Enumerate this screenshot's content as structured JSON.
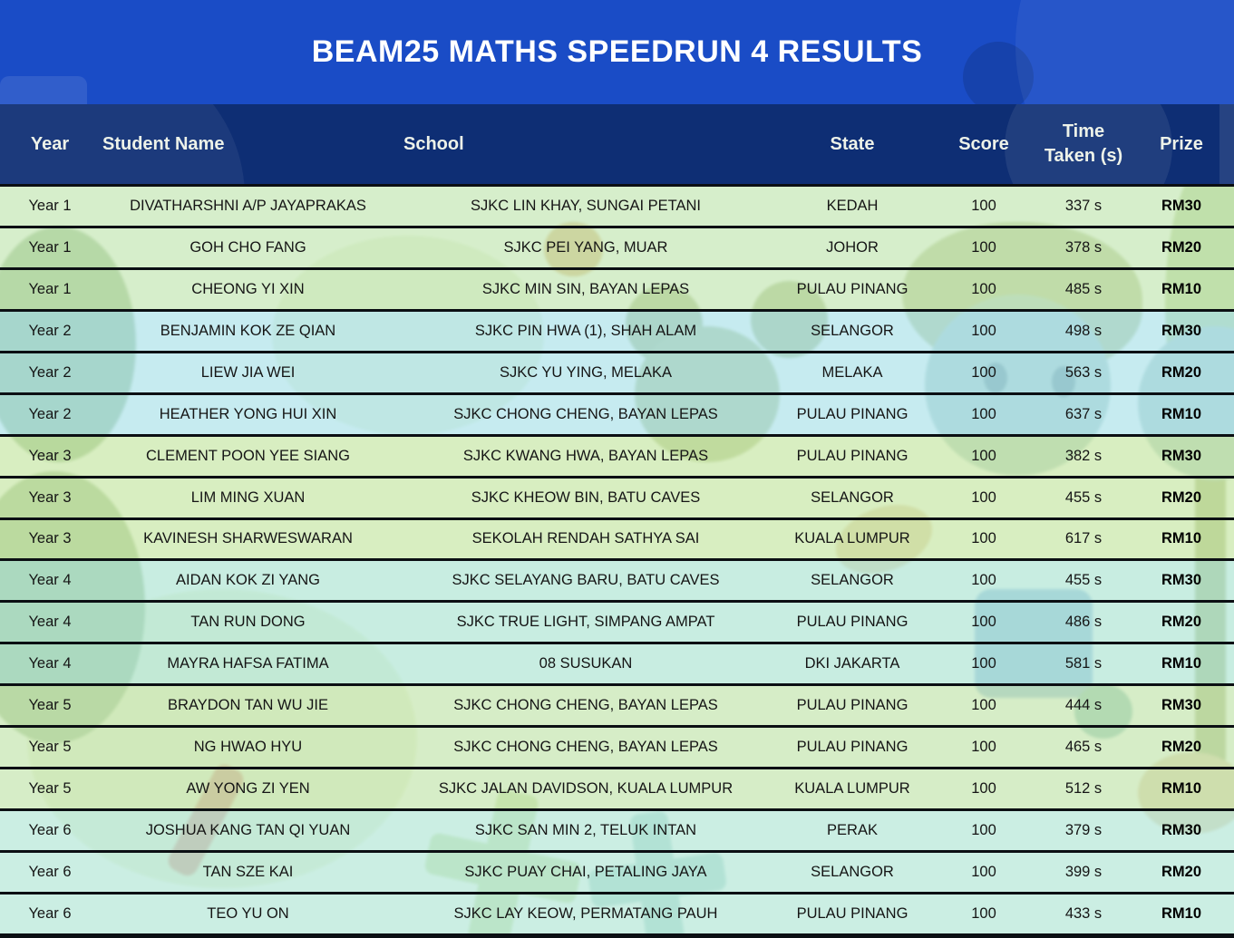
{
  "title": "BEAM25 MATHS SPEEDRUN 4 RESULTS",
  "chart_data": {
    "type": "table",
    "title": "BEAM25 MATHS SPEEDRUN 4 RESULTS",
    "columns": [
      "Year",
      "Student Name",
      "School",
      "State",
      "Score",
      "Time Taken (s)",
      "Prize"
    ],
    "rows": [
      [
        "Year 1",
        "DIVATHARSHNI A/P JAYAPRAKAS",
        "SJKC LIN KHAY, SUNGAI PETANI",
        "KEDAH",
        "100",
        "337 s",
        "RM30"
      ],
      [
        "Year 1",
        "GOH CHO FANG",
        "SJKC PEI YANG, MUAR",
        "JOHOR",
        "100",
        "378 s",
        "RM20"
      ],
      [
        "Year 1",
        "CHEONG YI XIN",
        "SJKC MIN SIN, BAYAN LEPAS",
        "PULAU PINANG",
        "100",
        "485 s",
        "RM10"
      ],
      [
        "Year 2",
        "BENJAMIN KOK ZE QIAN",
        "SJKC PIN HWA (1), SHAH ALAM",
        "SELANGOR",
        "100",
        "498 s",
        "RM30"
      ],
      [
        "Year 2",
        "LIEW JIA WEI",
        "SJKC YU YING, MELAKA",
        "MELAKA",
        "100",
        "563 s",
        "RM20"
      ],
      [
        "Year 2",
        "HEATHER YONG HUI XIN",
        "SJKC CHONG CHENG, BAYAN LEPAS",
        "PULAU PINANG",
        "100",
        "637 s",
        "RM10"
      ],
      [
        "Year 3",
        "CLEMENT POON YEE SIANG",
        "SJKC KWANG HWA, BAYAN LEPAS",
        "PULAU PINANG",
        "100",
        "382 s",
        "RM30"
      ],
      [
        "Year 3",
        "LIM MING XUAN",
        "SJKC KHEOW BIN, BATU CAVES",
        "SELANGOR",
        "100",
        "455 s",
        "RM20"
      ],
      [
        "Year 3",
        "KAVINESH SHARWESWARAN",
        "SEKOLAH RENDAH SATHYA SAI",
        "KUALA LUMPUR",
        "100",
        "617 s",
        "RM10"
      ],
      [
        "Year 4",
        "AIDAN KOK ZI YANG",
        "SJKC SELAYANG BARU, BATU CAVES",
        "SELANGOR",
        "100",
        "455 s",
        "RM30"
      ],
      [
        "Year 4",
        "TAN RUN DONG",
        "SJKC TRUE LIGHT, SIMPANG AMPAT",
        "PULAU PINANG",
        "100",
        "486 s",
        "RM20"
      ],
      [
        "Year 4",
        "MAYRA HAFSA FATIMA",
        "08 SUSUKAN",
        "DKI JAKARTA",
        "100",
        "581 s",
        "RM10"
      ],
      [
        "Year 5",
        "BRAYDON TAN WU JIE",
        "SJKC CHONG CHENG, BAYAN LEPAS",
        "PULAU PINANG",
        "100",
        "444 s",
        "RM30"
      ],
      [
        "Year 5",
        "NG HWAO HYU",
        "SJKC CHONG CHENG, BAYAN LEPAS",
        "PULAU PINANG",
        "100",
        "465 s",
        "RM20"
      ],
      [
        "Year 5",
        "AW YONG ZI YEN",
        "SJKC JALAN DAVIDSON, KUALA LUMPUR",
        "KUALA LUMPUR",
        "100",
        "512 s",
        "RM10"
      ],
      [
        "Year 6",
        "JOSHUA KANG TAN QI YUAN",
        "SJKC SAN MIN 2, TELUK INTAN",
        "PERAK",
        "100",
        "379 s",
        "RM30"
      ],
      [
        "Year 6",
        "TAN SZE KAI",
        "SJKC PUAY CHAI, PETALING JAYA",
        "SELANGOR",
        "100",
        "399 s",
        "RM20"
      ],
      [
        "Year 6",
        "TEO YU ON",
        "SJKC LAY KEOW, PERMATANG PAUH",
        "PULAU PINANG",
        "100",
        "433 s",
        "RM10"
      ]
    ]
  },
  "colors": {
    "banner_blue": "#1a4cc6",
    "header_navy": "#0e2e74",
    "separator_line": "#0b0f13",
    "header_text": "#edf2e9",
    "body_text": "#151515",
    "row_group_fills": {
      "Year 1": "rgba(202,233,188,0.78)",
      "Year 2": "rgba(182,229,236,0.78)",
      "Year 3": "rgba(205,233,176,0.78)",
      "Year 4": "rgba(184,232,217,0.78)",
      "Year 5": "rgba(202,232,183,0.78)",
      "Year 6": "rgba(188,233,219,0.78)"
    }
  }
}
